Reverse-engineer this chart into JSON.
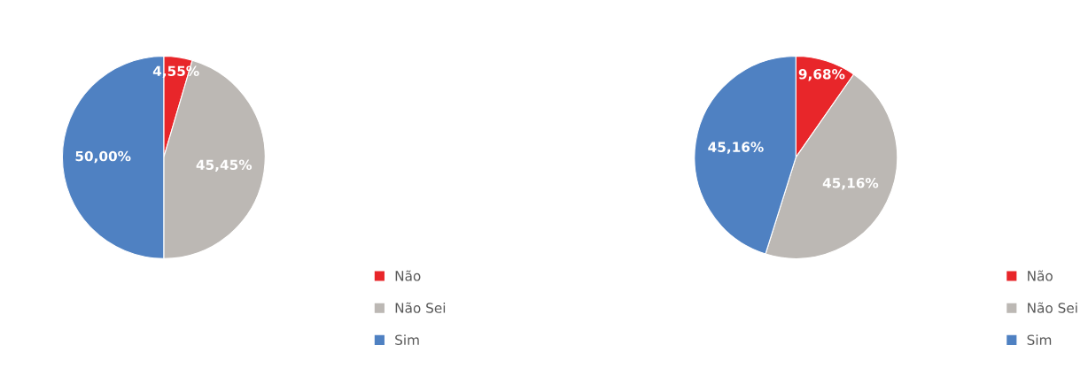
{
  "chart_data": [
    {
      "type": "pie",
      "categories": [
        "Não",
        "Não Sei",
        "Sim"
      ],
      "values": [
        4.55,
        45.45,
        50.0
      ],
      "colors": [
        "#e8262a",
        "#bcb8b4",
        "#4f81c2"
      ],
      "value_labels": [
        "4,55%",
        "45,45%",
        "50,00%"
      ],
      "legend": "bottom right"
    },
    {
      "type": "pie",
      "categories": [
        "Não",
        "Não Sei",
        "Sim"
      ],
      "values": [
        9.68,
        45.16,
        45.16
      ],
      "colors": [
        "#e8262a",
        "#bcb8b4",
        "#4f81c2"
      ],
      "value_labels": [
        "9,68%",
        "45,16%",
        "45,16%"
      ],
      "legend": "bottom right"
    }
  ]
}
